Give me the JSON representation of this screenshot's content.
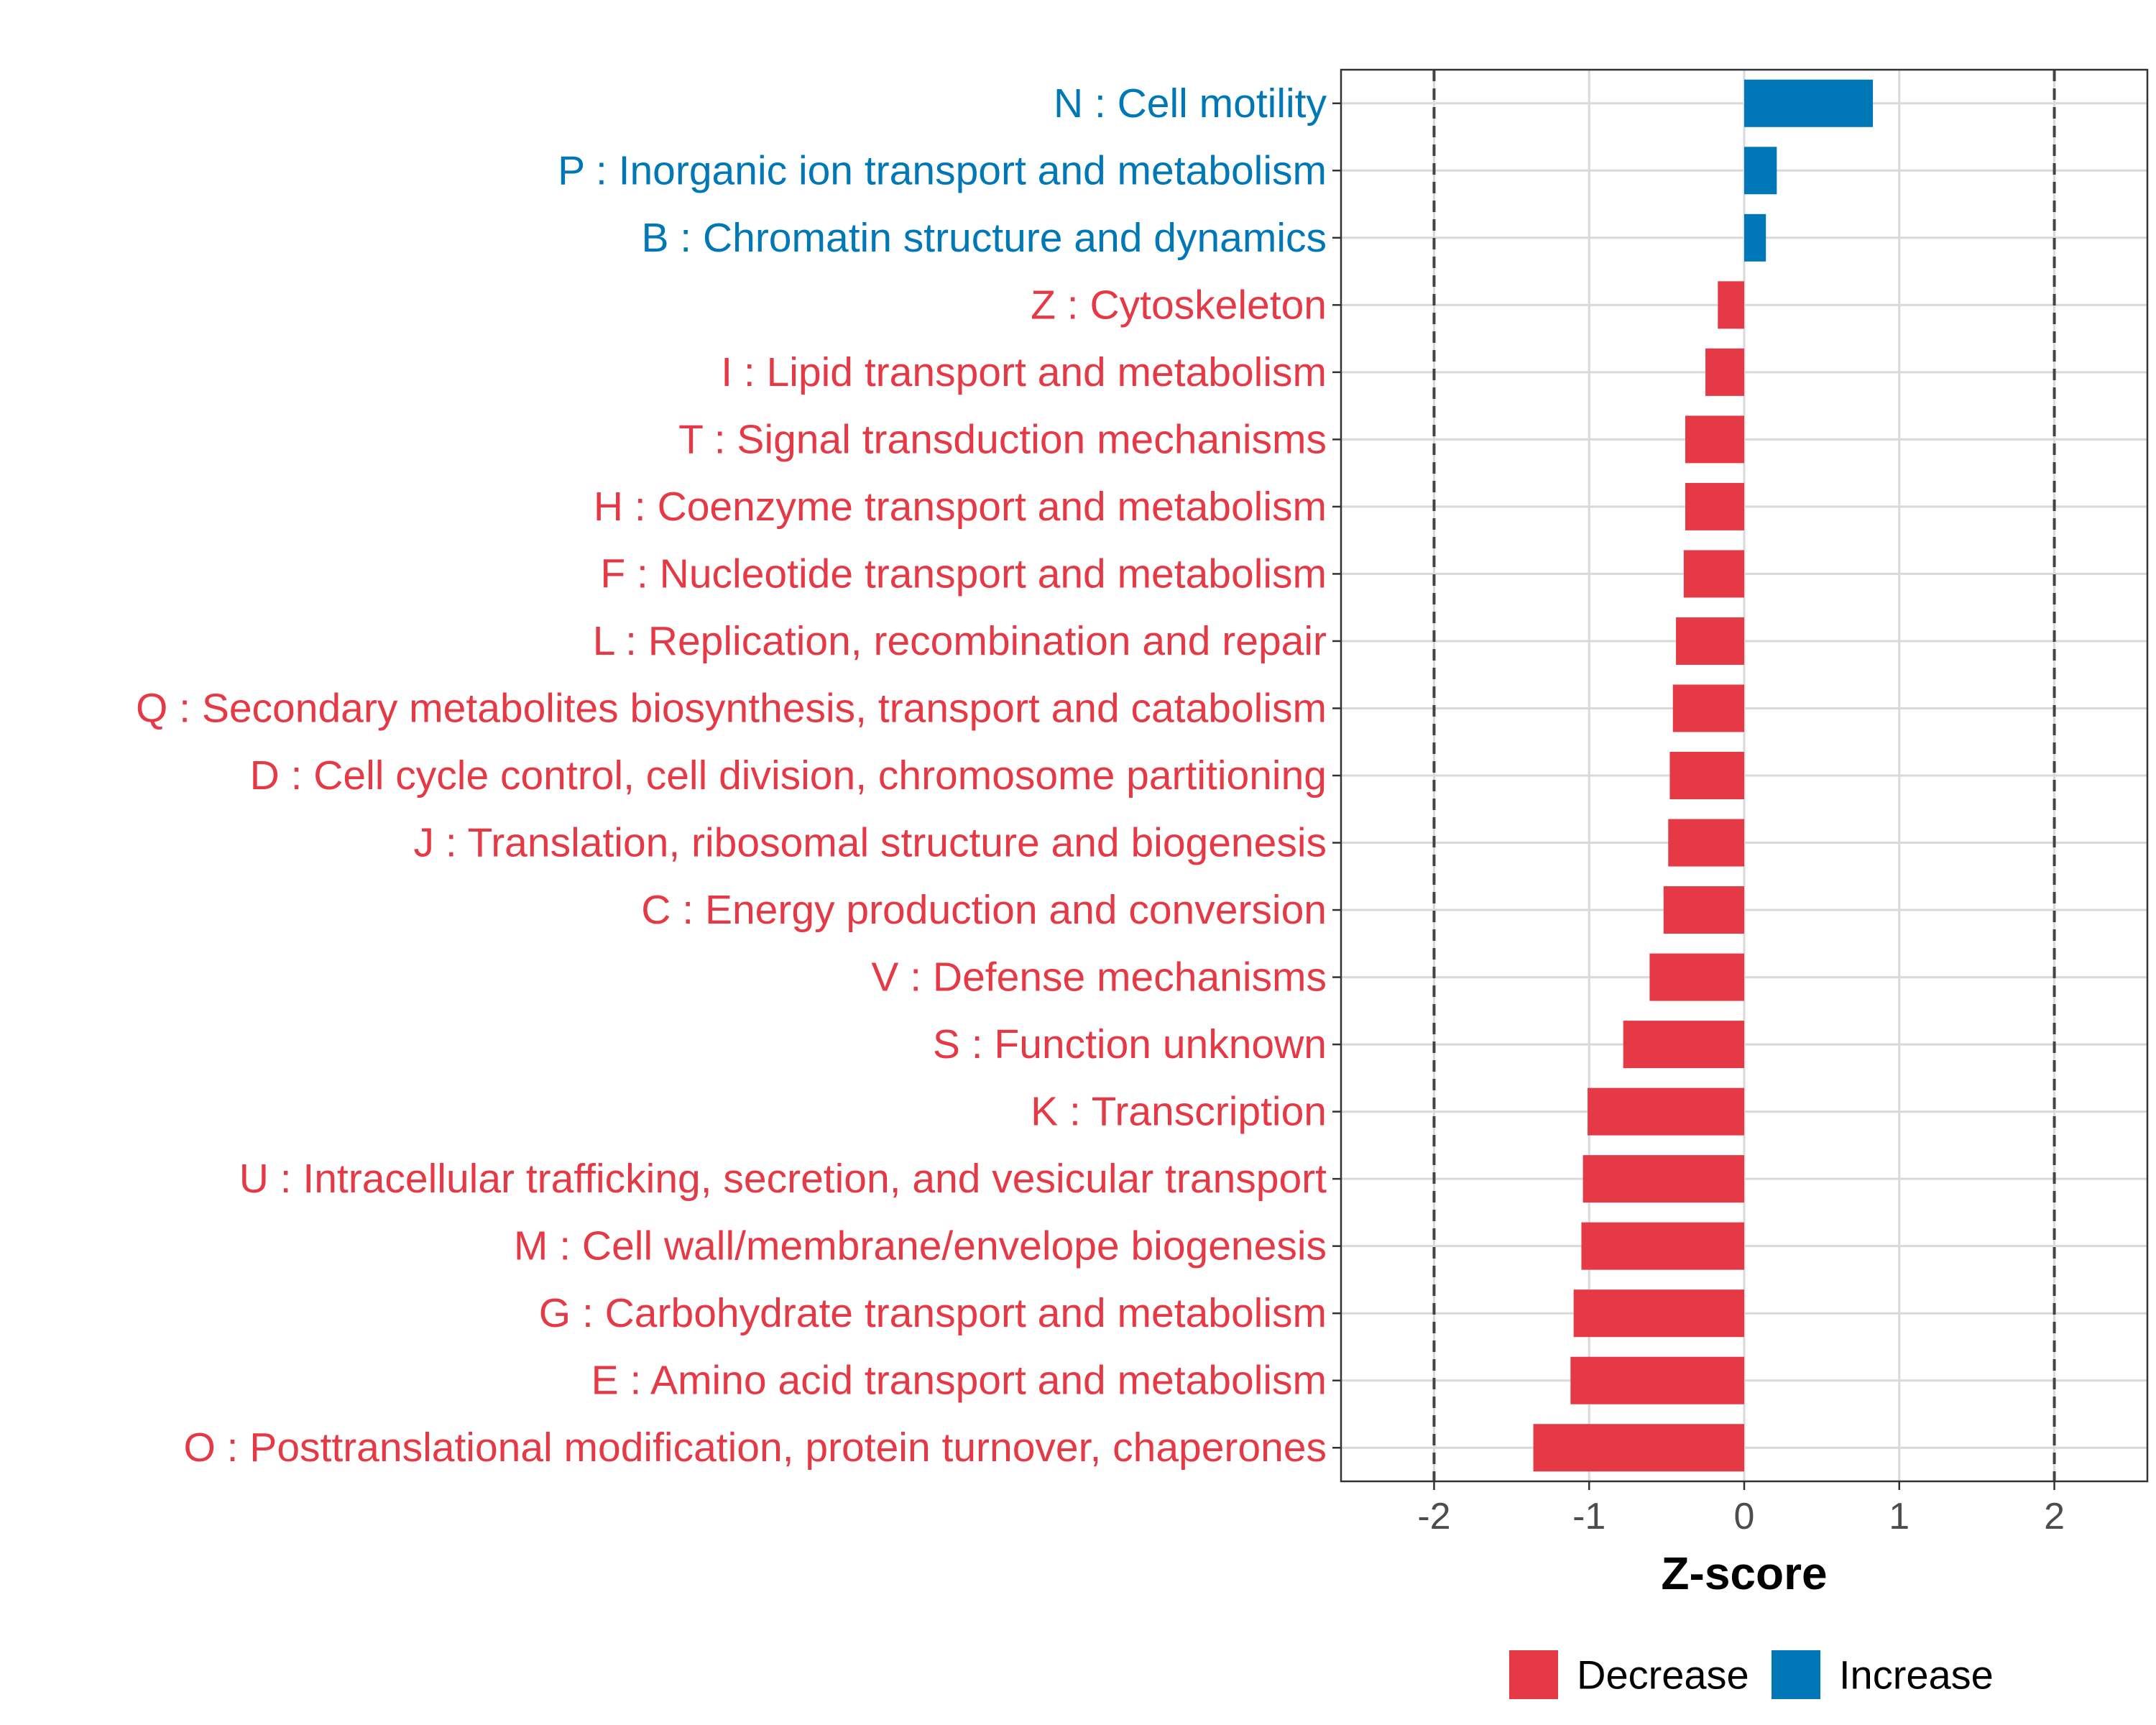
{
  "colors": {
    "decrease": "#E63946",
    "increase": "#0077B6",
    "grid": "#d9d9d9",
    "panel_border": "#333333",
    "ref_line": "#444444",
    "tick_text": "#4d4d4d"
  },
  "chart_data": {
    "type": "bar",
    "orientation": "horizontal",
    "title": "",
    "xlabel": "Z-score",
    "ylabel": "",
    "xlim": [
      -2.6,
      2.6
    ],
    "x_ticks": [
      -2,
      -1,
      0,
      1,
      2
    ],
    "x_tick_labels": [
      "-2",
      "-1",
      "0",
      "1",
      "2"
    ],
    "reference_lines": [
      -2,
      2
    ],
    "grid": true,
    "legend_position": "bottom",
    "legend": [
      {
        "label": "Decrease",
        "color": "#E63946"
      },
      {
        "label": "Increase",
        "color": "#0077B6"
      }
    ],
    "categories": [
      "N : Cell motility",
      "P : Inorganic ion transport and metabolism",
      "B : Chromatin structure and dynamics",
      "Z : Cytoskeleton",
      "I : Lipid transport and metabolism",
      "T : Signal transduction mechanisms",
      "H : Coenzyme transport and metabolism",
      "F : Nucleotide transport and metabolism",
      "L : Replication, recombination and repair",
      "Q : Secondary metabolites biosynthesis, transport and catabolism",
      "D : Cell cycle control, cell division, chromosome partitioning",
      "J : Translation, ribosomal structure and biogenesis",
      "C : Energy production and conversion",
      "V : Defense mechanisms",
      "S : Function unknown",
      "K : Transcription",
      "U : Intracellular trafficking, secretion, and vesicular transport",
      "M : Cell wall/membrane/envelope biogenesis",
      "G : Carbohydrate transport and metabolism",
      "E : Amino acid transport and metabolism",
      "O : Posttranslational modification, protein turnover, chaperones"
    ],
    "values": [
      0.83,
      0.21,
      0.14,
      -0.17,
      -0.25,
      -0.38,
      -0.38,
      -0.39,
      -0.44,
      -0.46,
      -0.48,
      -0.49,
      -0.52,
      -0.61,
      -0.78,
      -1.01,
      -1.04,
      -1.05,
      -1.1,
      -1.12,
      -1.36
    ],
    "groups": [
      "Increase",
      "Increase",
      "Increase",
      "Decrease",
      "Decrease",
      "Decrease",
      "Decrease",
      "Decrease",
      "Decrease",
      "Decrease",
      "Decrease",
      "Decrease",
      "Decrease",
      "Decrease",
      "Decrease",
      "Decrease",
      "Decrease",
      "Decrease",
      "Decrease",
      "Decrease",
      "Decrease"
    ]
  }
}
